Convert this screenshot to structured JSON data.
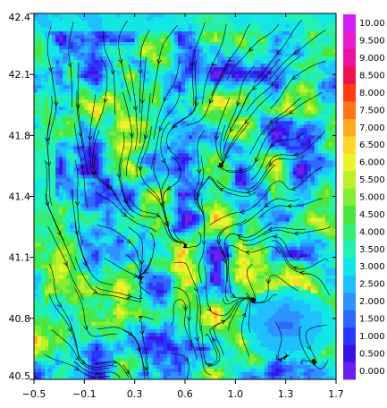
{
  "chart_data": {
    "type": "heatmap",
    "title": "",
    "xlabel": "",
    "ylabel": "",
    "xlim": [
      -0.5,
      1.7
    ],
    "ylim": [
      40.5,
      42.4
    ],
    "x_ticks": [
      "−0.5",
      "−0.1",
      "0.3",
      "0.6",
      "1.0",
      "1.3",
      "1.7"
    ],
    "y_ticks": [
      "40.5",
      "40.8",
      "41.1",
      "41.4",
      "41.8",
      "42.1",
      "42.4"
    ],
    "overlay": "streamlines",
    "colorbar": {
      "position": "right",
      "levels": [
        "0.000",
        "0.500",
        "1.000",
        "1.500",
        "2.000",
        "2.500",
        "3.000",
        "3.500",
        "4.000",
        "4.500",
        "5.000",
        "5.500",
        "6.000",
        "6.500",
        "7.000",
        "7.500",
        "8.000",
        "8.500",
        "9.000",
        "9.500",
        "10.00"
      ],
      "colors": [
        "#6a1ef0",
        "#3a14e0",
        "#2a38ff",
        "#2f68ff",
        "#2f93ff",
        "#1fc0ff",
        "#14e6e6",
        "#24f0b4",
        "#35ee78",
        "#4ae63e",
        "#86ec30",
        "#bcf02a",
        "#ecf52c",
        "#ffd62a",
        "#ffab23",
        "#ff7518",
        "#ff3c12",
        "#f0124a",
        "#e8149b",
        "#e81ad0",
        "#d21ef2"
      ]
    }
  }
}
